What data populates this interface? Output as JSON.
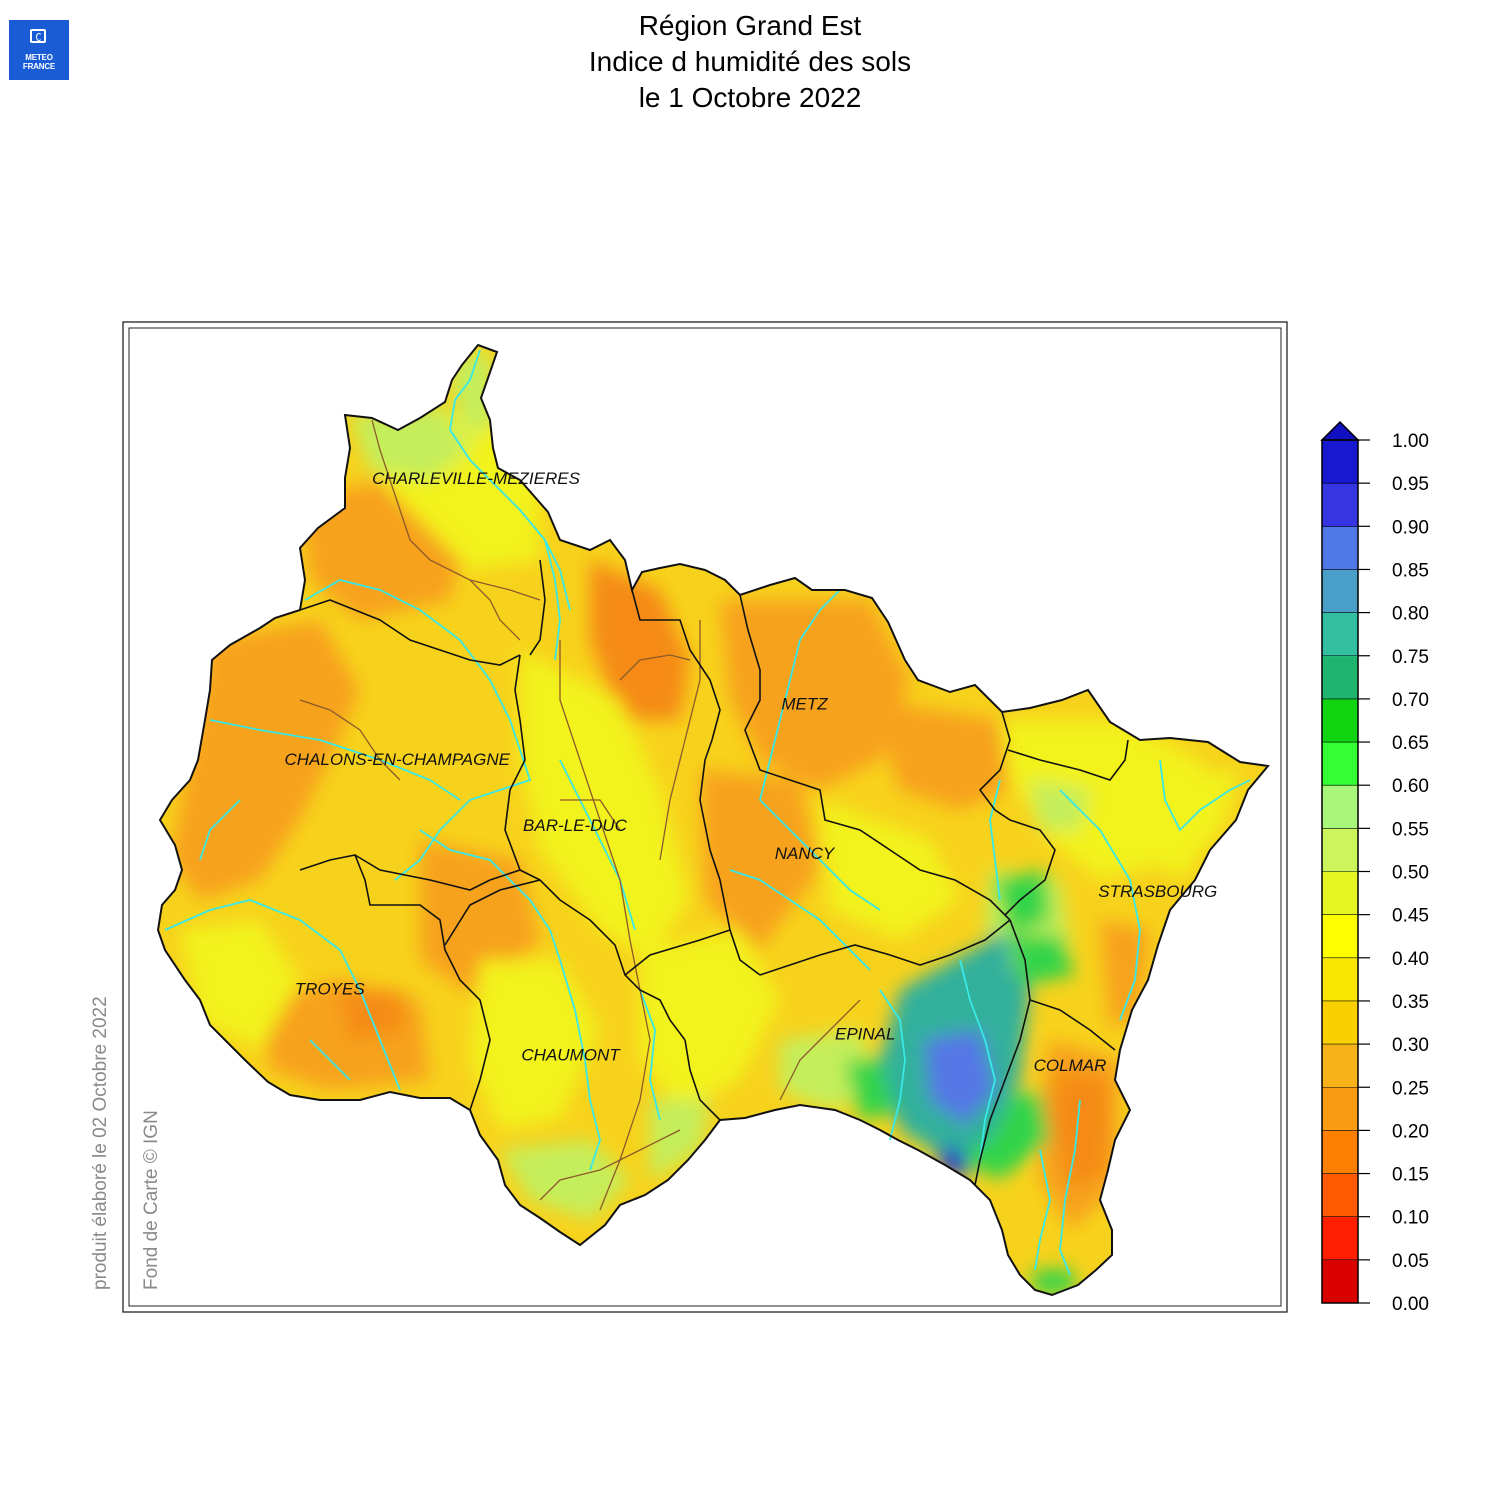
{
  "header": {
    "logo_line1": "METEO",
    "logo_line2": "FRANCE",
    "title_line1": "Région Grand Est",
    "title_line2": "Indice d humidité des sols",
    "title_line3": "le 1 Octobre 2022"
  },
  "side_notes": {
    "produced": "produit élaboré le 02 Octobre 2022",
    "basemap": "Fond de Carte © IGN"
  },
  "cities": [
    {
      "name": "CHARLEVILLE-MEZIERES",
      "lon": 4.72,
      "lat": 49.77
    },
    {
      "name": "CHALONS-EN-CHAMPAGNE",
      "lon": 4.37,
      "lat": 48.96
    },
    {
      "name": "BAR-LE-DUC",
      "lon": 5.16,
      "lat": 48.77
    },
    {
      "name": "METZ",
      "lon": 6.18,
      "lat": 49.12
    },
    {
      "name": "NANCY",
      "lon": 6.18,
      "lat": 48.69
    },
    {
      "name": "STRASBOURG",
      "lon": 7.75,
      "lat": 48.58
    },
    {
      "name": "TROYES",
      "lon": 4.07,
      "lat": 48.3
    },
    {
      "name": "CHAUMONT",
      "lon": 5.14,
      "lat": 48.11
    },
    {
      "name": "EPINAL",
      "lon": 6.45,
      "lat": 48.17
    },
    {
      "name": "COLMAR",
      "lon": 7.36,
      "lat": 48.08
    }
  ],
  "legend": {
    "ticks": [
      "0.00",
      "0.05",
      "0.10",
      "0.15",
      "0.20",
      "0.25",
      "0.30",
      "0.35",
      "0.40",
      "0.45",
      "0.50",
      "0.55",
      "0.60",
      "0.65",
      "0.70",
      "0.75",
      "0.80",
      "0.85",
      "0.90",
      "0.95",
      "1.00"
    ],
    "colors": [
      "#d90000",
      "#ff1f00",
      "#ff5a00",
      "#ff7f00",
      "#fb9b12",
      "#f7b21a",
      "#f9d000",
      "#fbe600",
      "#ffff00",
      "#e6f623",
      "#ccf55c",
      "#a9f77a",
      "#33ff33",
      "#10d410",
      "#1fb56f",
      "#33c0a0",
      "#4a9fc8",
      "#5079e8",
      "#3535e4",
      "#1818d0"
    ],
    "extend_color": "#1010c0"
  },
  "map_colors": {
    "base": "#f7d21c",
    "orange": "#f7a21c",
    "deep_orange": "#f58b12",
    "yellow": "#f2f21c",
    "light_green": "#c4ee5c",
    "green": "#33d44a",
    "teal": "#33b09c",
    "blue": "#5577e6",
    "dark_blue": "#2222d0",
    "river": "#38e8e8",
    "border": "#111111",
    "basin": "#8b5a2b"
  }
}
